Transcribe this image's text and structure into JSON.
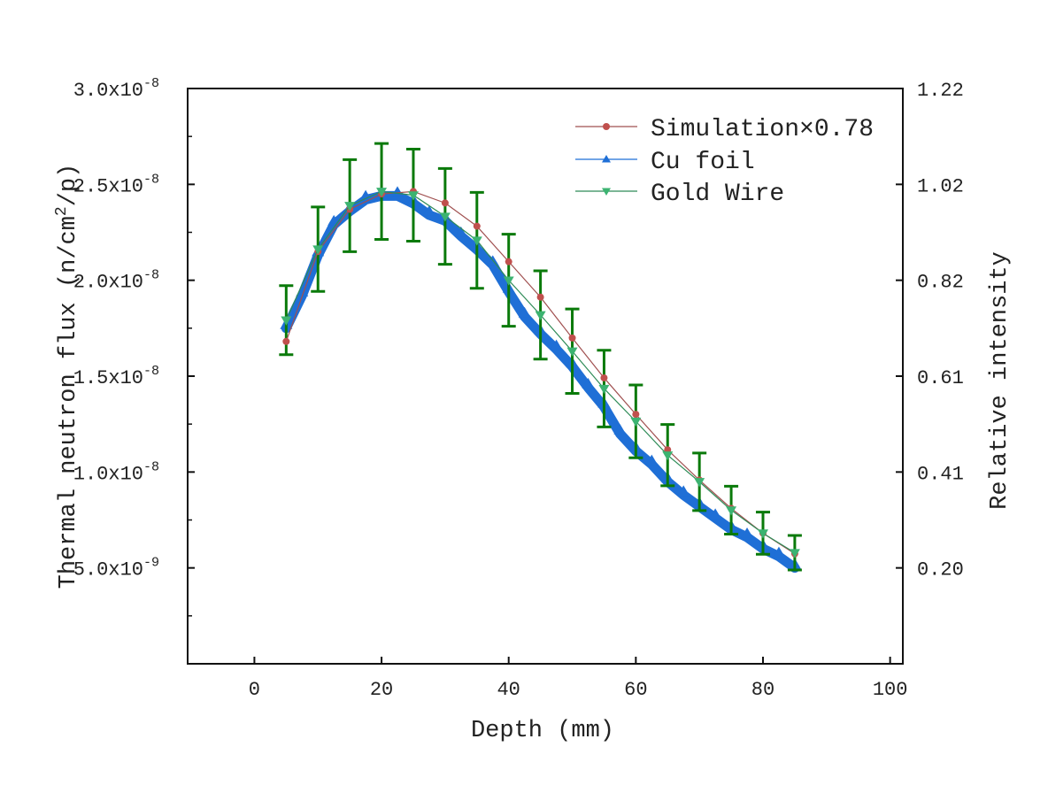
{
  "chart_data": {
    "type": "line",
    "xlabel": "Depth (mm)",
    "ylabel": "Thermal neutron flux (n/cm2/p)",
    "ylabel_parts": {
      "before": "Thermal neutron flux (n/cm",
      "sup": "2",
      "after": "/p)"
    },
    "y2label": "Relative intensity",
    "xlim": [
      -10.5,
      102
    ],
    "ylim": [
      0,
      3e-08
    ],
    "xticks": [
      0,
      20,
      40,
      60,
      80,
      100
    ],
    "xtick_labels": [
      "0",
      "20",
      "40",
      "60",
      "80",
      "100"
    ],
    "yticks": [
      5e-09,
      1e-08,
      1.5e-08,
      2e-08,
      2.5e-08,
      3e-08
    ],
    "ytick_labels": [
      {
        "mant": "5.0x10",
        "exp": "-9"
      },
      {
        "mant": "1.0x10",
        "exp": "-8"
      },
      {
        "mant": "1.5x10",
        "exp": "-8"
      },
      {
        "mant": "2.0x10",
        "exp": "-8"
      },
      {
        "mant": "2.5x10",
        "exp": "-8"
      },
      {
        "mant": "3.0x10",
        "exp": "-8"
      }
    ],
    "y2tick_labels": [
      "0.20",
      "0.41",
      "0.61",
      "0.82",
      "1.02",
      "1.22"
    ],
    "grid": false,
    "legend_position": "top-right",
    "series": [
      {
        "name": "Simulation×0.78",
        "color": "#c0504d",
        "line_color": "#a05050",
        "marker": "circle",
        "x": [
          5,
          10,
          15,
          20,
          25,
          30,
          35,
          40,
          45,
          50,
          55,
          60,
          65,
          70,
          75,
          80,
          85
        ],
        "y": [
          1.681e-08,
          2.15e-08,
          2.37e-08,
          2.45e-08,
          2.463e-08,
          2.403e-08,
          2.282e-08,
          2.097e-08,
          1.912e-08,
          1.699e-08,
          1.491e-08,
          1.301e-08,
          1.116e-08,
          9.58e-09,
          8.1e-09,
          6.81e-09,
          5.74e-09
        ]
      },
      {
        "name": "Cu foil",
        "color": "#1f6fd6",
        "marker": "triangle-up",
        "x": [
          5,
          7.5,
          10,
          12.5,
          15,
          17.5,
          20,
          22.5,
          25,
          27.5,
          30,
          32.5,
          35,
          37.5,
          40,
          42.5,
          45,
          47.5,
          50,
          52.5,
          55,
          57.5,
          60,
          62.5,
          65,
          67.5,
          70,
          72.5,
          75,
          77.5,
          80,
          82.5,
          85
        ],
        "y": [
          1.75e-08,
          1.92e-08,
          2.13e-08,
          2.29e-08,
          2.36e-08,
          2.42e-08,
          2.44e-08,
          2.44e-08,
          2.4e-08,
          2.34e-08,
          2.31e-08,
          2.23e-08,
          2.16e-08,
          2.08e-08,
          1.94e-08,
          1.81e-08,
          1.72e-08,
          1.64e-08,
          1.55e-08,
          1.44e-08,
          1.34e-08,
          1.2e-08,
          1.11e-08,
          1.04e-08,
          9.5e-09,
          8.8e-09,
          8.2e-09,
          7.6e-09,
          7e-09,
          6.6e-09,
          6e-09,
          5.6e-09,
          5e-09
        ]
      },
      {
        "name": "Gold Wire",
        "color": "#3cb371",
        "line_color": "#2e8b57",
        "errorbar_color": "#0a7a0a",
        "marker": "triangle-down",
        "x": [
          5,
          10,
          15,
          20,
          25,
          30,
          35,
          40,
          45,
          50,
          55,
          60,
          65,
          70,
          75,
          80,
          85
        ],
        "y": [
          1.792e-08,
          2.162e-08,
          2.389e-08,
          2.463e-08,
          2.444e-08,
          2.333e-08,
          2.208e-08,
          2e-08,
          1.819e-08,
          1.63e-08,
          1.435e-08,
          1.264e-08,
          1.088e-08,
          9.49e-09,
          8.01e-09,
          6.81e-09,
          5.79e-09
        ],
        "yerr": [
          1.8e-09,
          2.2e-09,
          2.4e-09,
          2.5e-09,
          2.4e-09,
          2.5e-09,
          2.5e-09,
          2.4e-09,
          2.3e-09,
          2.2e-09,
          2e-09,
          1.9e-09,
          1.6e-09,
          1.5e-09,
          1.25e-09,
          1.1e-09,
          9e-10
        ]
      }
    ]
  }
}
